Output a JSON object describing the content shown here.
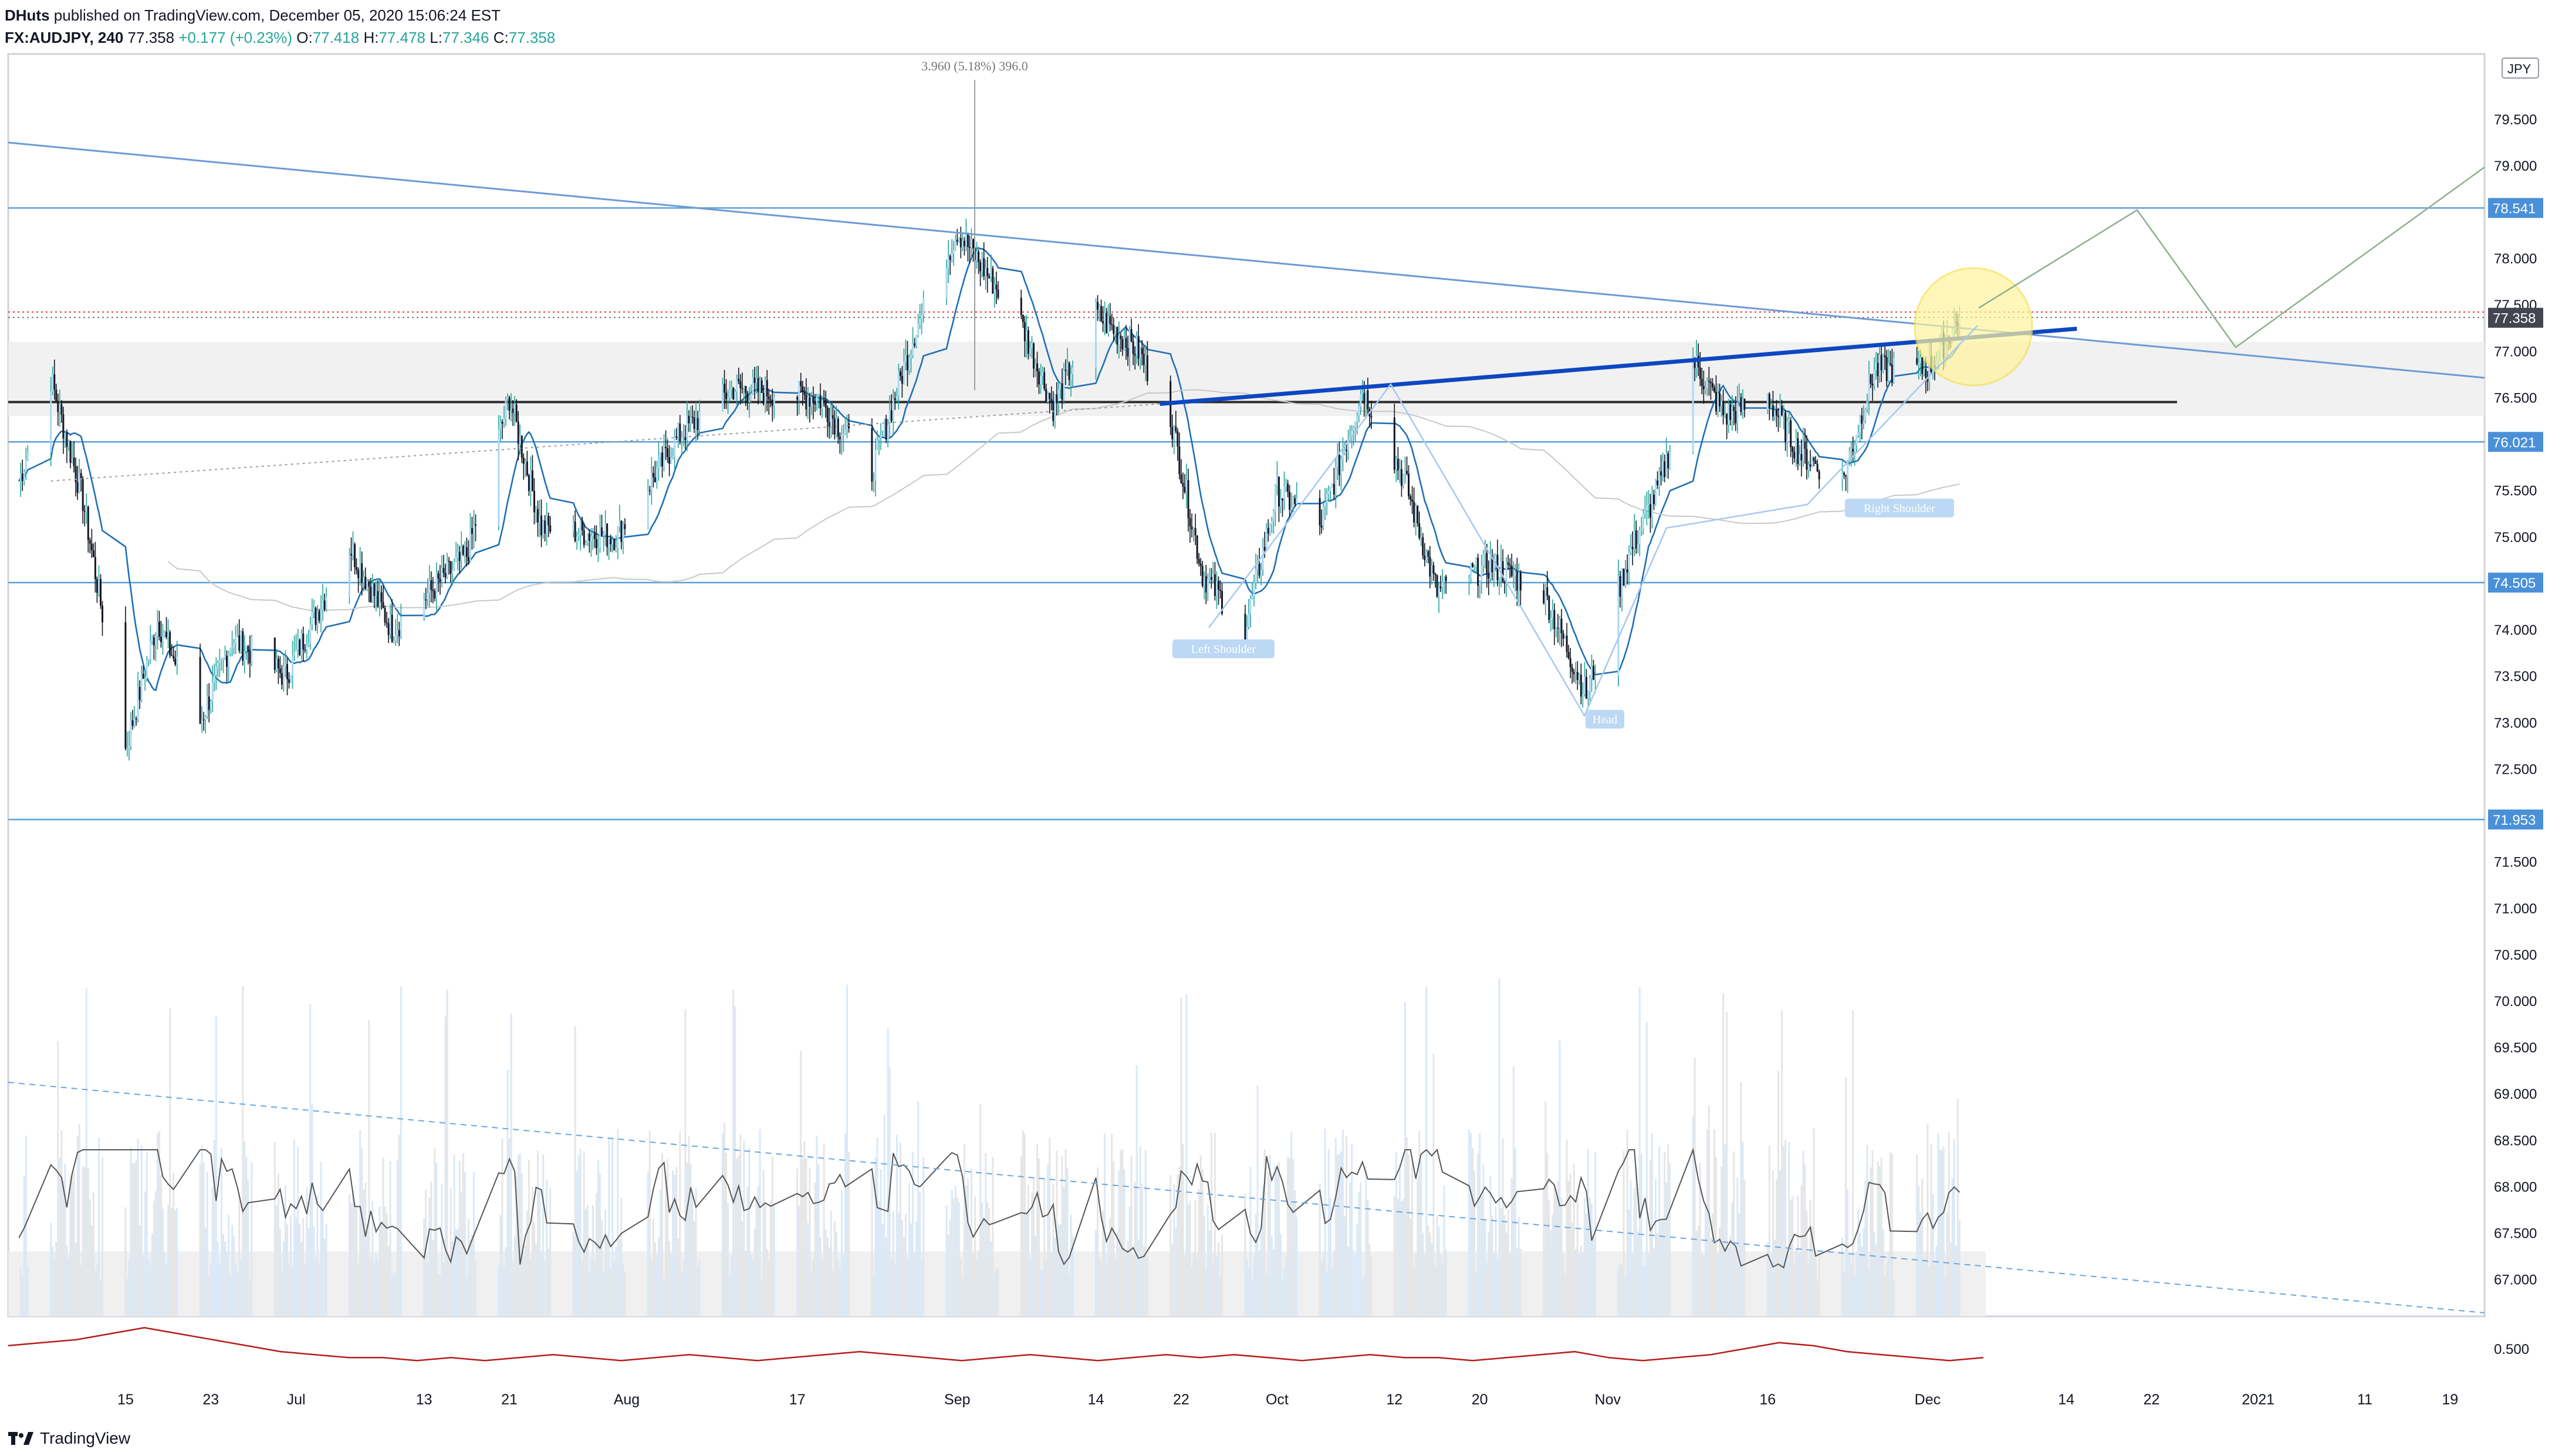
{
  "header": {
    "author": "DHuts",
    "published": "published on TradingView.com, December 05, 2020 15:06:24 EST",
    "symbol": "FX:AUDJPY, 240",
    "last": "77.358",
    "change": "+0.177 (+0.23%)",
    "o_label": "O:",
    "o": "77.418",
    "h_label": "H:",
    "h": "77.478",
    "l_label": "L:",
    "l": "77.346",
    "c_label": "C:",
    "c": "77.358"
  },
  "brand": {
    "name": "TradingView",
    "logo_icon": "tradingview-logo-icon"
  },
  "colors": {
    "up": "#26a69a",
    "down": "#131722",
    "trend": "#3d7fd9",
    "neckline": "#0d47c1",
    "support": "#2c2c2c",
    "level": "#5aa0d8",
    "badge": "#4a90d9",
    "highlight": "#fff59d",
    "projection": "#8fae8f",
    "oscillator": "#b71c1c"
  },
  "chart_data": [
    {
      "type": "candlestick",
      "symbol": "FX:AUDJPY",
      "interval": "240",
      "currency": "JPY",
      "x_tick_labels": [
        "15",
        "23",
        "Jul",
        "13",
        "21",
        "Aug",
        "17",
        "Sep",
        "14",
        "22",
        "Oct",
        "12",
        "20",
        "Nov",
        "16",
        "Dec",
        "14",
        "22",
        "2021",
        "11",
        "19"
      ],
      "y_tick_labels": [
        "79.500",
        "79.000",
        "78.000",
        "77.500",
        "77.000",
        "76.500",
        "75.500",
        "75.000",
        "74.000",
        "73.500",
        "73.000",
        "72.500",
        "71.500",
        "71.000",
        "70.500",
        "70.000",
        "69.500",
        "69.000",
        "68.500",
        "68.000",
        "67.500",
        "67.000"
      ],
      "ylim": [
        66.6,
        80.2
      ],
      "last_price": "77.358",
      "price_levels": [
        "78.541",
        "77.358",
        "76.021",
        "74.505",
        "71.953"
      ],
      "level_values": [
        78.541,
        76.021,
        74.505,
        71.953
      ],
      "support_value": 76.45,
      "zone": [
        76.3,
        77.1
      ],
      "top_label": "3.960 (5.18%) 396.0",
      "pattern_labels": [
        "Left Shoulder",
        "Head",
        "Right Shoulder"
      ],
      "anchors": [
        {
          "x": "2020-06-05",
          "y": 75.6
        },
        {
          "x": "2020-06-08",
          "y": 76.7
        },
        {
          "x": "2020-06-11",
          "y": 75.4
        },
        {
          "x": "2020-06-15",
          "y": 72.7
        },
        {
          "x": "2020-06-18",
          "y": 74.1
        },
        {
          "x": "2020-06-22",
          "y": 73.0
        },
        {
          "x": "2020-06-25",
          "y": 73.9
        },
        {
          "x": "2020-06-30",
          "y": 73.5
        },
        {
          "x": "2020-07-06",
          "y": 74.9
        },
        {
          "x": "2020-07-10",
          "y": 74.0
        },
        {
          "x": "2020-07-17",
          "y": 74.8
        },
        {
          "x": "2020-07-21",
          "y": 76.5
        },
        {
          "x": "2020-07-24",
          "y": 75.1
        },
        {
          "x": "2020-07-31",
          "y": 75.0
        },
        {
          "x": "2020-08-06",
          "y": 76.1
        },
        {
          "x": "2020-08-11",
          "y": 76.6
        },
        {
          "x": "2020-08-19",
          "y": 76.5
        },
        {
          "x": "2020-08-24",
          "y": 75.7
        },
        {
          "x": "2020-08-28",
          "y": 77.2
        },
        {
          "x": "2020-09-01",
          "y": 78.3
        },
        {
          "x": "2020-09-07",
          "y": 77.3
        },
        {
          "x": "2020-09-10",
          "y": 76.4
        },
        {
          "x": "2020-09-14",
          "y": 77.4
        },
        {
          "x": "2020-09-18",
          "y": 77.0
        },
        {
          "x": "2020-09-21",
          "y": 76.3
        },
        {
          "x": "2020-09-24",
          "y": 74.6
        },
        {
          "x": "2020-09-28",
          "y": 74.0
        },
        {
          "x": "2020-10-01",
          "y": 75.5
        },
        {
          "x": "2020-10-05",
          "y": 75.1
        },
        {
          "x": "2020-10-09",
          "y": 76.6
        },
        {
          "x": "2020-10-13",
          "y": 75.6
        },
        {
          "x": "2020-10-16",
          "y": 74.4
        },
        {
          "x": "2020-10-21",
          "y": 74.7
        },
        {
          "x": "2020-10-26",
          "y": 74.4
        },
        {
          "x": "2020-10-30",
          "y": 73.3
        },
        {
          "x": "2020-11-03",
          "y": 74.8
        },
        {
          "x": "2020-11-06",
          "y": 75.6
        },
        {
          "x": "2020-11-09",
          "y": 76.9
        },
        {
          "x": "2020-11-12",
          "y": 76.3
        },
        {
          "x": "2020-11-16",
          "y": 76.5
        },
        {
          "x": "2020-11-19",
          "y": 75.9
        },
        {
          "x": "2020-11-23",
          "y": 75.6
        },
        {
          "x": "2020-11-26",
          "y": 76.8
        },
        {
          "x": "2020-12-01",
          "y": 76.8
        },
        {
          "x": "2020-12-04",
          "y": 77.36
        }
      ]
    },
    {
      "type": "line",
      "name": "oscillator",
      "ylim": [
        0.4,
        0.6
      ],
      "y_tick_labels": [
        "0.500"
      ],
      "values": [
        0.51,
        0.52,
        0.53,
        0.55,
        0.57,
        0.55,
        0.53,
        0.51,
        0.49,
        0.48,
        0.47,
        0.47,
        0.46,
        0.47,
        0.46,
        0.47,
        0.48,
        0.47,
        0.46,
        0.47,
        0.48,
        0.47,
        0.46,
        0.47,
        0.48,
        0.49,
        0.48,
        0.47,
        0.46,
        0.47,
        0.48,
        0.47,
        0.46,
        0.47,
        0.48,
        0.47,
        0.48,
        0.47,
        0.46,
        0.47,
        0.48,
        0.47,
        0.47,
        0.46,
        0.47,
        0.48,
        0.49,
        0.47,
        0.46,
        0.47,
        0.48,
        0.5,
        0.52,
        0.51,
        0.49,
        0.48,
        0.47,
        0.46,
        0.47
      ]
    }
  ]
}
